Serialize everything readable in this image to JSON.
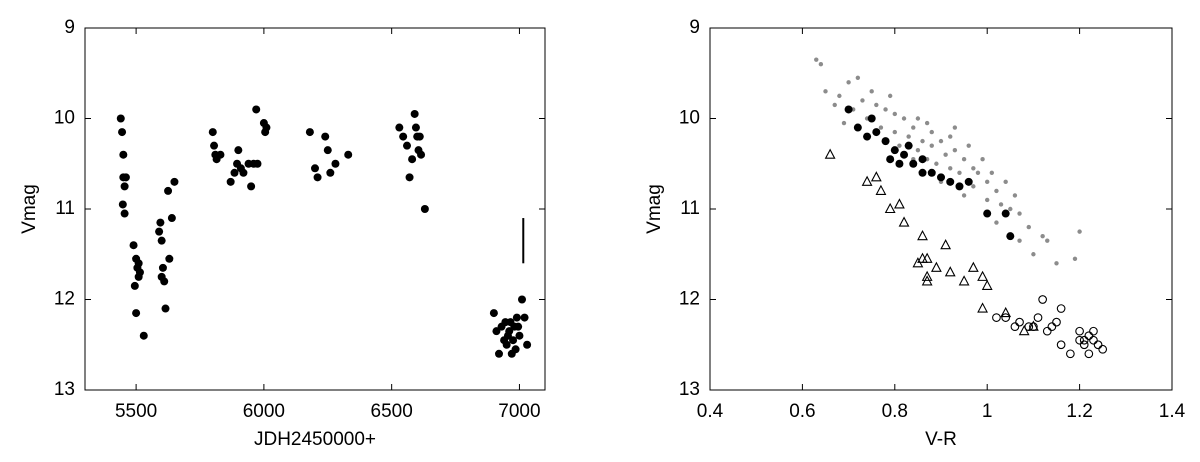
{
  "chart_data": [
    {
      "type": "scatter",
      "xlabel": "JDH2450000+",
      "ylabel": "Vmag",
      "xlim": [
        5300,
        7100
      ],
      "xticks": [
        5500,
        6000,
        6500,
        7000
      ],
      "ylim": [
        9,
        13
      ],
      "yticks": [
        9,
        10,
        11,
        12,
        13
      ],
      "y_reversed": true,
      "series": [
        {
          "color": "#000000",
          "marker": "dot",
          "x": [
            5440,
            5445,
            5450,
            5450,
            5455,
            5448,
            5455,
            5460,
            5490,
            5500,
            5505,
            5510,
            5495,
            5500,
            5510,
            5515,
            5530,
            5590,
            5595,
            5600,
            5605,
            5610,
            5600,
            5615,
            5625,
            5640,
            5630,
            5650,
            5800,
            5805,
            5810,
            5815,
            5830,
            5870,
            5885,
            5895,
            5900,
            5910,
            5920,
            5940,
            5950,
            5960,
            5970,
            5975,
            6000,
            6005,
            6010,
            6180,
            6200,
            6210,
            6240,
            6250,
            6260,
            6280,
            6330,
            6530,
            6545,
            6560,
            6570,
            6580,
            6590,
            6595,
            6600,
            6605,
            6610,
            6615,
            6630,
            6900,
            6910,
            6920,
            6930,
            6940,
            6945,
            6950,
            6960,
            6965,
            6970,
            6980,
            6985,
            6990,
            7000,
            7010,
            7020,
            7030,
            6975,
            6955,
            6995
          ],
          "values": [
            10.0,
            10.15,
            10.4,
            10.65,
            10.75,
            10.95,
            11.05,
            10.65,
            11.4,
            11.55,
            11.65,
            11.75,
            11.85,
            12.15,
            11.6,
            11.7,
            12.4,
            11.25,
            11.15,
            11.35,
            11.65,
            11.8,
            11.75,
            12.1,
            10.8,
            11.1,
            11.55,
            10.7,
            10.15,
            10.3,
            10.4,
            10.45,
            10.4,
            10.7,
            10.6,
            10.5,
            10.35,
            10.55,
            10.6,
            10.5,
            10.75,
            10.5,
            9.9,
            10.5,
            10.05,
            10.15,
            10.1,
            10.15,
            10.55,
            10.65,
            10.2,
            10.35,
            10.6,
            10.5,
            10.4,
            10.1,
            10.2,
            10.3,
            10.65,
            10.45,
            9.95,
            10.1,
            10.2,
            10.35,
            10.2,
            10.4,
            11.0,
            12.15,
            12.35,
            12.6,
            12.3,
            12.45,
            12.25,
            12.5,
            12.35,
            12.25,
            12.6,
            12.3,
            12.55,
            12.2,
            12.4,
            12.0,
            12.2,
            12.5,
            12.45,
            12.4,
            12.3
          ]
        }
      ],
      "error_bar": {
        "x": 7015,
        "y1": 11.1,
        "y2": 11.6
      }
    },
    {
      "type": "scatter",
      "xlabel": "V-R",
      "ylabel": "Vmag",
      "xlim": [
        0.4,
        1.4
      ],
      "xticks": [
        0.4,
        0.6,
        0.8,
        {
          "value": 1,
          "label": "1"
        },
        1.2,
        1.4
      ],
      "ylim": [
        9,
        13
      ],
      "yticks": [
        9,
        10,
        11,
        12,
        13
      ],
      "y_reversed": true,
      "series": [
        {
          "color": "#8c8c8c",
          "marker": "small-dot",
          "x": [
            0.63,
            0.64,
            0.65,
            0.67,
            0.68,
            0.7,
            0.71,
            0.72,
            0.73,
            0.74,
            0.75,
            0.76,
            0.77,
            0.78,
            0.79,
            0.8,
            0.8,
            0.81,
            0.82,
            0.83,
            0.84,
            0.85,
            0.85,
            0.86,
            0.87,
            0.88,
            0.88,
            0.89,
            0.9,
            0.91,
            0.92,
            0.92,
            0.93,
            0.94,
            0.95,
            0.96,
            0.97,
            0.97,
            0.98,
            0.99,
            1.0,
            1.0,
            1.01,
            1.02,
            1.03,
            1.04,
            1.05,
            1.06,
            1.07,
            1.07,
            1.09,
            1.1,
            1.12,
            1.13,
            1.15,
            1.2,
            1.19,
            0.69,
            0.78,
            0.84,
            0.9,
            0.95,
            1.02,
            0.87,
            0.93
          ],
          "values": [
            9.35,
            9.4,
            9.7,
            9.85,
            9.75,
            9.6,
            9.9,
            9.55,
            9.8,
            10.0,
            9.7,
            9.85,
            10.1,
            9.9,
            9.75,
            10.15,
            9.95,
            10.3,
            10.0,
            10.2,
            10.1,
            10.35,
            10.0,
            10.25,
            10.45,
            10.15,
            10.3,
            10.5,
            10.25,
            10.4,
            10.55,
            10.2,
            10.35,
            10.6,
            10.45,
            10.3,
            10.55,
            10.75,
            10.6,
            10.45,
            10.7,
            10.9,
            10.6,
            10.8,
            10.95,
            10.7,
            11.0,
            10.85,
            11.05,
            11.35,
            11.2,
            11.5,
            11.3,
            11.35,
            11.6,
            11.25,
            11.55,
            10.05,
            10.25,
            10.45,
            10.7,
            10.85,
            11.15,
            10.05,
            10.1
          ]
        },
        {
          "color": "#000000",
          "marker": "dot",
          "x": [
            0.7,
            0.72,
            0.75,
            0.76,
            0.78,
            0.8,
            0.82,
            0.84,
            0.86,
            0.88,
            0.9,
            0.92,
            0.94,
            0.96,
            1.0,
            1.04,
            1.05,
            0.83,
            0.79,
            0.86,
            0.74,
            0.81
          ],
          "values": [
            9.9,
            10.1,
            10.0,
            10.15,
            10.25,
            10.35,
            10.4,
            10.5,
            10.45,
            10.6,
            10.65,
            10.7,
            10.75,
            10.7,
            11.05,
            11.05,
            11.3,
            10.3,
            10.45,
            10.6,
            10.2,
            10.5
          ]
        },
        {
          "color": "#000000",
          "marker": "triangle",
          "x": [
            0.66,
            0.74,
            0.76,
            0.77,
            0.79,
            0.81,
            0.82,
            0.86,
            0.87,
            0.89,
            0.86,
            0.85,
            0.91,
            0.92,
            0.95,
            0.97,
            0.99,
            1.0,
            0.99,
            1.04,
            1.08,
            1.1,
            0.87,
            0.87
          ],
          "values": [
            10.4,
            10.7,
            10.65,
            10.8,
            11.0,
            10.95,
            11.15,
            11.3,
            11.55,
            11.65,
            11.55,
            11.6,
            11.4,
            11.7,
            11.8,
            11.65,
            11.75,
            11.85,
            12.1,
            12.15,
            12.35,
            12.3,
            11.8,
            11.75
          ]
        },
        {
          "color": "#000000",
          "marker": "circle",
          "x": [
            1.02,
            1.04,
            1.06,
            1.07,
            1.09,
            1.1,
            1.11,
            1.12,
            1.13,
            1.14,
            1.15,
            1.16,
            1.16,
            1.18,
            1.2,
            1.21,
            1.22,
            1.23,
            1.24,
            1.25,
            1.2,
            1.22,
            1.21,
            1.23
          ],
          "values": [
            12.2,
            12.2,
            12.3,
            12.25,
            12.3,
            12.3,
            12.2,
            12.0,
            12.35,
            12.3,
            12.25,
            12.1,
            12.5,
            12.6,
            12.35,
            12.45,
            12.6,
            12.35,
            12.5,
            12.55,
            12.45,
            12.4,
            12.5,
            12.45
          ]
        }
      ]
    }
  ]
}
